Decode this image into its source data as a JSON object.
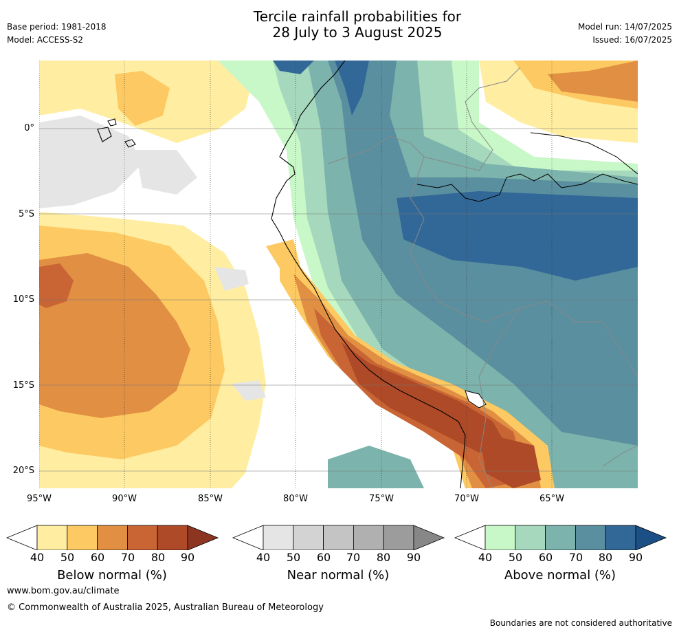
{
  "header": {
    "title_line1": "Tercile rainfall probabilities for",
    "title_line2": "28 July to 3 August 2025",
    "base_period": "Base period: 1981-2018",
    "model": "Model: ACCESS-S2",
    "model_run": "Model run: 14/07/2025",
    "issued": "Issued: 16/07/2025"
  },
  "map": {
    "lat_labels": [
      "0°",
      "5°S",
      "10°S",
      "15°S",
      "20°S"
    ],
    "lon_labels": [
      "95°W",
      "90°W",
      "85°W",
      "80°W",
      "75°W",
      "70°W",
      "65°W"
    ],
    "lat_values": [
      0,
      -5,
      -10,
      -15,
      -20
    ],
    "lon_values": [
      -95,
      -90,
      -85,
      -80,
      -75,
      -70,
      -65
    ],
    "extent": {
      "lon_min": -95,
      "lon_max": -60,
      "lat_min": -21,
      "lat_max": 4
    }
  },
  "colorbars": [
    {
      "title": "Below normal (%)",
      "ticks": [
        "40",
        "50",
        "60",
        "70",
        "80",
        "90"
      ],
      "colors": [
        "#ffeea1",
        "#fdc962",
        "#e08f43",
        "#c96534",
        "#ae4a27"
      ],
      "extend_color": "#8c3520"
    },
    {
      "title": "Near normal (%)",
      "ticks": [
        "40",
        "50",
        "60",
        "70",
        "80",
        "90"
      ],
      "colors": [
        "#e5e5e5",
        "#d3d3d3",
        "#c4c4c4",
        "#b0b0b0",
        "#9c9c9c"
      ],
      "extend_color": "#878787"
    },
    {
      "title": "Above normal (%)",
      "ticks": [
        "40",
        "50",
        "60",
        "70",
        "80",
        "90"
      ],
      "colors": [
        "#c8f7c8",
        "#a5d8bc",
        "#7cb3ac",
        "#5a8fa0",
        "#326897"
      ],
      "extend_color": "#1b4f85"
    }
  ],
  "footer": {
    "website": "www.bom.gov.au/climate",
    "copyright": "© Commonwealth of Australia 2025, Australian Bureau of Meteorology",
    "disclaimer": "Boundaries are not considered authoritative"
  }
}
